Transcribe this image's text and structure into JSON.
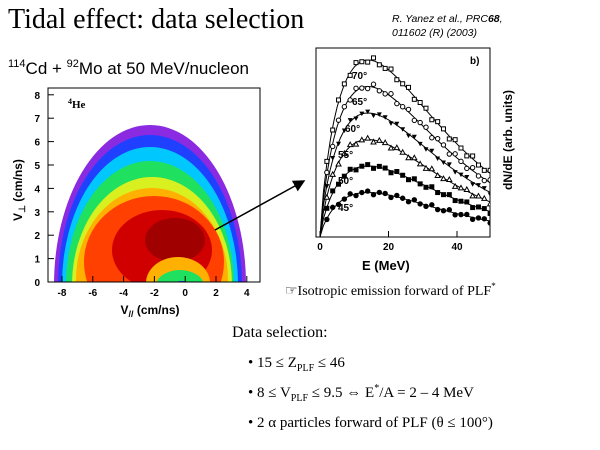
{
  "title": "Tidal effect: data selection",
  "reference": {
    "line1": [
      "R. Yanez",
      "et al.",
      ", PRC",
      "68",
      ","
    ],
    "line2": "011602 (R) (2003)"
  },
  "subtitle": [
    "114",
    "Cd + ",
    "92",
    "Mo at 50 MeV/nucleon"
  ],
  "left_plot": {
    "label": [
      "4",
      "He"
    ],
    "xticks": [
      "-8",
      "-6",
      "-4",
      "-2",
      "0",
      "2",
      "4"
    ],
    "yticks": [
      "0",
      "1",
      "2",
      "3",
      "4",
      "5",
      "6",
      "7",
      "8"
    ],
    "ylabel": [
      "V",
      "⊥",
      " (cm/ns)"
    ],
    "xlabel": [
      "V",
      "//",
      " (cm/ns)"
    ]
  },
  "right_plot": {
    "panel": "b)",
    "xticks": [
      "0",
      "20",
      "40"
    ],
    "angles": [
      "70°",
      "65°",
      "60°",
      "55°",
      "50°",
      "45°"
    ],
    "xlabel": "E (MeV)",
    "ylabel": "dN/dE (arb. units)"
  },
  "note": [
    "☞Isotropic emission forward of PLF",
    "*"
  ],
  "selection": {
    "heading": "Data selection:",
    "items": [
      [
        "• 15 ≤ Z",
        "PLF",
        " ≤ 46"
      ],
      [
        "• 8 ≤ V",
        "PLF",
        " ≤ 9.5 ⇔ E",
        "*",
        "/A = 2 – 4 MeV"
      ],
      [
        "• 2 α particles forward of PLF (θ ≤ 100°)"
      ]
    ]
  }
}
